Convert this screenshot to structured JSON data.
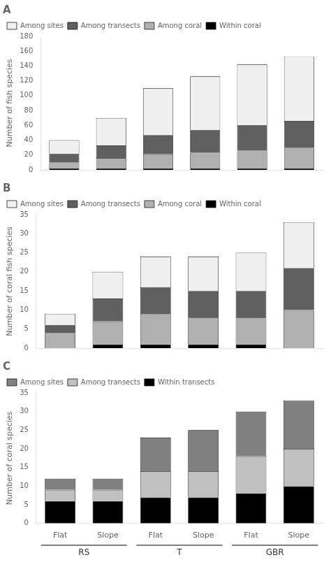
{
  "chart_data": [
    {
      "type": "bar",
      "title": "A",
      "ylabel": "Number of fish species",
      "categories": [
        "Flat",
        "Slope",
        "Flat",
        "Slope",
        "Flat",
        "Slope"
      ],
      "series": [
        {
          "name": "Within coral",
          "color": "#000000",
          "values": [
            2,
            2,
            2,
            2,
            2,
            2
          ]
        },
        {
          "name": "Among coral",
          "color": "#b0b0b0",
          "values": [
            8,
            14,
            19,
            21,
            24,
            28
          ]
        },
        {
          "name": "Among transects",
          "color": "#606060",
          "values": [
            12,
            17,
            26,
            31,
            34,
            36
          ]
        },
        {
          "name": "Among sites",
          "color": "#f0f0f0",
          "values": [
            18,
            37,
            63,
            72,
            82,
            87
          ]
        }
      ],
      "ylim": [
        0,
        180
      ],
      "yticks": [
        0,
        20,
        40,
        60,
        80,
        100,
        120,
        140,
        160,
        180
      ],
      "stacked": true,
      "grid": false,
      "legend": "upper left",
      "tick_labels": "y"
    },
    {
      "type": "bar",
      "title": "B",
      "ylabel": "Number of coral fish species",
      "categories": [
        "Flat",
        "Slope",
        "Flat",
        "Slope",
        "Flat",
        "Slope"
      ],
      "series": [
        {
          "name": "Within coral",
          "color": "#000000",
          "values": [
            0,
            1,
            1,
            1,
            1,
            0
          ]
        },
        {
          "name": "Among coral",
          "color": "#b0b0b0",
          "values": [
            4,
            6,
            8,
            7,
            7,
            10
          ]
        },
        {
          "name": "Among transects",
          "color": "#606060",
          "values": [
            2,
            6,
            7,
            7,
            7,
            11
          ]
        },
        {
          "name": "Among sites",
          "color": "#f0f0f0",
          "values": [
            3,
            7,
            8,
            9,
            10,
            12
          ]
        }
      ],
      "ylim": [
        0,
        35
      ],
      "yticks": [
        0,
        5,
        10,
        15,
        20,
        25,
        30,
        35
      ],
      "stacked": true,
      "grid": false,
      "legend": "upper left",
      "tick_labels": "y"
    },
    {
      "type": "bar",
      "title": "C",
      "ylabel": "Number of coral species",
      "categories": [
        "Flat",
        "Slope",
        "Flat",
        "Slope",
        "Flat",
        "Slope"
      ],
      "series": [
        {
          "name": "Within transects",
          "color": "#000000",
          "values": [
            6,
            6,
            7,
            7,
            8,
            10
          ]
        },
        {
          "name": "Among transects",
          "color": "#c0c0c0",
          "values": [
            3,
            3,
            7,
            7,
            10,
            10
          ]
        },
        {
          "name": "Among sites",
          "color": "#808080",
          "values": [
            3,
            3,
            9,
            11,
            12,
            13
          ]
        }
      ],
      "ylim": [
        0,
        35
      ],
      "yticks": [
        0,
        5,
        10,
        15,
        20,
        25,
        30,
        35
      ],
      "stacked": true,
      "grid": false,
      "legend": "upper left",
      "annotations": [
        {
          "text": "RS"
        },
        {
          "text": "T"
        },
        {
          "text": "GBR"
        }
      ]
    }
  ]
}
